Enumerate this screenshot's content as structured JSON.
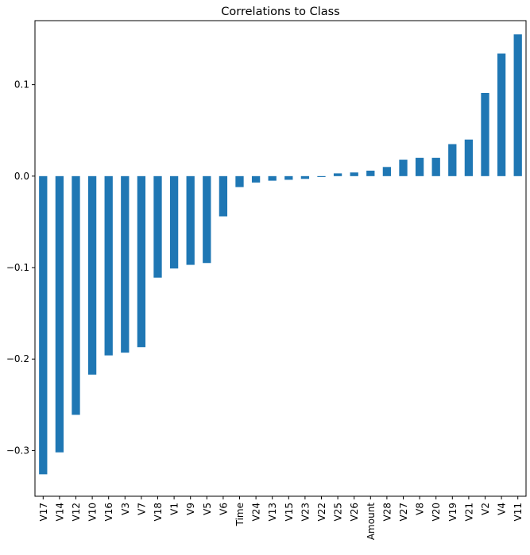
{
  "chart_data": {
    "type": "bar",
    "title": "Correlations to Class",
    "xlabel": "",
    "ylabel": "",
    "categories": [
      "V17",
      "V14",
      "V12",
      "V10",
      "V16",
      "V3",
      "V7",
      "V18",
      "V1",
      "V9",
      "V5",
      "V6",
      "Time",
      "V24",
      "V13",
      "V15",
      "V23",
      "V22",
      "V25",
      "V26",
      "Amount",
      "V28",
      "V27",
      "V8",
      "V20",
      "V19",
      "V21",
      "V2",
      "V4",
      "V11"
    ],
    "values": [
      -0.326,
      -0.302,
      -0.261,
      -0.217,
      -0.196,
      -0.193,
      -0.187,
      -0.111,
      -0.101,
      -0.097,
      -0.095,
      -0.044,
      -0.012,
      -0.007,
      -0.005,
      -0.004,
      -0.003,
      -0.001,
      0.003,
      0.004,
      0.006,
      0.01,
      0.018,
      0.02,
      0.02,
      0.035,
      0.04,
      0.091,
      0.134,
      0.155
    ],
    "ylim": [
      -0.35,
      0.17
    ],
    "yticks": [
      -0.3,
      -0.2,
      -0.1,
      0.0,
      0.1
    ],
    "ytick_labels": [
      "−0.3",
      "−0.2",
      "−0.1",
      "0.0",
      "0.1"
    ],
    "bar_color": "#1f77b4",
    "grid": false,
    "legend": "none"
  }
}
